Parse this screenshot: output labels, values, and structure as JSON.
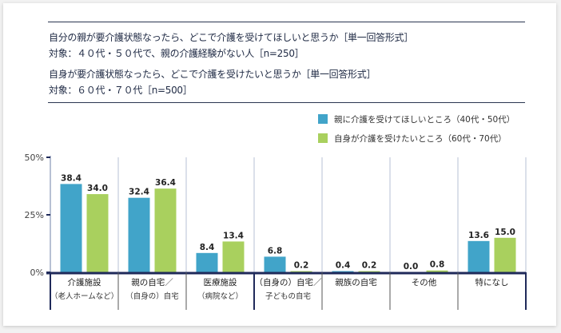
{
  "header": {
    "line1": "自分の親が要介護状態なったら、どこで介護を受けてほしいと思うか［単一回答形式］",
    "line2": "対象：４０代・５０代で、親の介護経験がない人［n=250］",
    "line3": "自身が要介護状態なったら、どこで介護を受けたいと思うか［単一回答形式］",
    "line4": "対象：６０代・７０代［n=500］"
  },
  "chart_data": {
    "type": "bar",
    "title": "",
    "xlabel": "",
    "ylabel": "",
    "ylim": [
      0,
      50
    ],
    "y_ticks": [
      {
        "value": 0,
        "label": "0%"
      },
      {
        "value": 25,
        "label": "25%"
      },
      {
        "value": 50,
        "label": "50%"
      }
    ],
    "categories": [
      {
        "main": "介護施設",
        "sub": "（老人ホームなど）"
      },
      {
        "main": "親の自宅／",
        "sub": "（自身の）自宅"
      },
      {
        "main": "医療施設",
        "sub": "（病院など）"
      },
      {
        "main": "（自身の）自宅／",
        "sub": "子どもの自宅"
      },
      {
        "main": "親族の自宅",
        "sub": ""
      },
      {
        "main": "その他",
        "sub": ""
      },
      {
        "main": "特になし",
        "sub": ""
      }
    ],
    "series": [
      {
        "name": "親に介護を受けてほしいところ（40代・50代）",
        "color": "#41a4c9",
        "values": [
          38.4,
          32.4,
          8.4,
          6.8,
          0.4,
          0.0,
          13.6
        ]
      },
      {
        "name": "自身が介護を受けたいところ（60代・70代）",
        "color": "#a9d05e",
        "values": [
          34.0,
          36.4,
          13.4,
          0.2,
          0.2,
          0.8,
          15.0
        ]
      }
    ],
    "legend_position": "top-right",
    "grid": false
  }
}
